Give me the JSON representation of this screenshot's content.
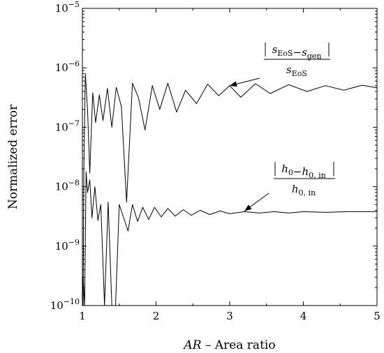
{
  "chart_data": {
    "type": "line",
    "xlabel": "AR – Area ratio",
    "xlabel_italic_part": "AR",
    "xlabel_rest": " – Area ratio",
    "ylabel": "Normalized error",
    "xlim": [
      1,
      5
    ],
    "ylim": [
      1e-10,
      1e-05
    ],
    "yscale": "log",
    "grid": false,
    "x_ticks": [
      1,
      2,
      3,
      4,
      5
    ],
    "x_tick_labels": [
      "1",
      "2",
      "3",
      "4",
      "5"
    ],
    "y_ticks": [
      1e-10,
      1e-09,
      1e-08,
      1e-07,
      1e-06,
      1e-05
    ],
    "y_tick_labels": [
      {
        "base": "10",
        "exp": "−10"
      },
      {
        "base": "10",
        "exp": "−9"
      },
      {
        "base": "10",
        "exp": "−8"
      },
      {
        "base": "10",
        "exp": "−7"
      },
      {
        "base": "10",
        "exp": "−6"
      },
      {
        "base": "10",
        "exp": "−5"
      }
    ],
    "series": [
      {
        "x": [
          1.01,
          1.02,
          1.04,
          1.07,
          1.1,
          1.14,
          1.18,
          1.23,
          1.28,
          1.34,
          1.4,
          1.46,
          1.53,
          1.6,
          1.68,
          1.76,
          1.85,
          1.95,
          2.05,
          2.16,
          2.28,
          2.4,
          2.55,
          2.7,
          2.85,
          3.0,
          3.15,
          3.35,
          3.55,
          3.8,
          4.05,
          4.3,
          4.55,
          4.8,
          5.0
        ],
        "y": [
          1e-10,
          2e-08,
          8e-07,
          2e-07,
          1.7e-08,
          3.8e-07,
          1.2e-07,
          3.5e-07,
          1.3e-07,
          4.5e-07,
          1e-07,
          4.7e-07,
          2.2e-07,
          5.5e-09,
          5.5e-07,
          3.2e-07,
          9e-08,
          5e-07,
          2e-07,
          5.5e-07,
          1.8e-07,
          4.2e-07,
          2.5e-07,
          5.3e-07,
          3.4e-07,
          5e-07,
          3.2e-07,
          5.4e-07,
          3.7e-07,
          5.2e-07,
          4e-07,
          5e-07,
          4.2e-07,
          5.1e-07,
          4.6e-07
        ]
      },
      {
        "x": [
          1.0,
          1.01,
          1.03,
          1.05,
          1.07,
          1.1,
          1.13,
          1.17,
          1.21,
          1.25,
          1.3,
          1.35,
          1.4,
          1.45,
          1.5,
          1.56,
          1.62,
          1.68,
          1.75,
          1.82,
          1.9,
          1.98,
          2.07,
          2.16,
          2.26,
          2.37,
          2.48,
          2.6,
          2.73,
          2.87,
          3.0,
          3.2,
          3.4,
          3.6,
          3.8,
          4.0,
          4.3,
          4.6,
          5.0
        ],
        "y": [
          1e-10,
          3e-10,
          1e-10,
          1.8e-08,
          8e-09,
          1.3e-08,
          3e-09,
          1e-08,
          2.7e-09,
          5e-09,
          1e-10,
          5.5e-09,
          1e-10,
          1e-10,
          5e-09,
          3e-09,
          1.8e-09,
          5e-09,
          2.6e-09,
          4.5e-09,
          2.8e-09,
          4.5e-09,
          3.1e-09,
          4.3e-09,
          3.2e-09,
          4.1e-09,
          3.3e-09,
          4e-09,
          3.4e-09,
          3.9e-09,
          3.5e-09,
          3.8e-09,
          3.6e-09,
          3.8e-09,
          3.6e-09,
          3.8e-09,
          3.7e-09,
          3.8e-09,
          3.8e-09
        ]
      }
    ],
    "annotations": [
      {
        "numerator": [
          {
            "text": "s",
            "sub": "EoS"
          },
          {
            "text": "−"
          },
          {
            "text": "s",
            "sub": "gen"
          }
        ],
        "denominator": [
          {
            "text": "s",
            "sub": "EoS"
          }
        ],
        "arrow_to": [
          3.0,
          5e-07
        ]
      },
      {
        "numerator": [
          {
            "text": "h",
            "sub": "0"
          },
          {
            "text": "−"
          },
          {
            "text": "h",
            "sub": "0, in"
          }
        ],
        "denominator": [
          {
            "text": "h",
            "sub": "0, in"
          }
        ],
        "arrow_to": [
          3.2,
          3.9e-09
        ]
      }
    ]
  }
}
